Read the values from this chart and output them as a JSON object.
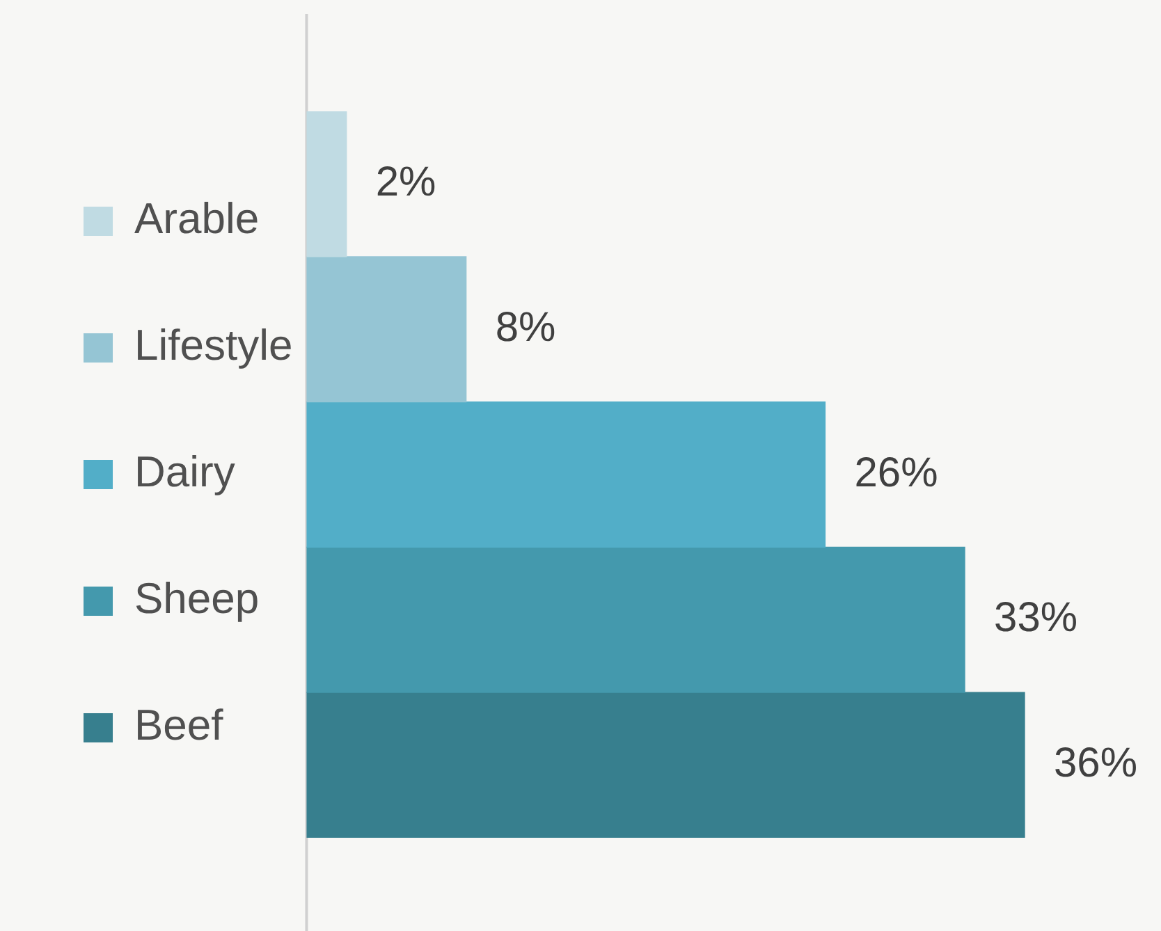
{
  "chart_data": {
    "type": "bar",
    "orientation": "horizontal",
    "categories": [
      null,
      null,
      null,
      null,
      null
    ],
    "series": [
      {
        "name": "Arable",
        "color": "#c0dbe3",
        "values": [
          2,
          null,
          null,
          null,
          null
        ],
        "value_labels": [
          "2%",
          null,
          null,
          null,
          null
        ]
      },
      {
        "name": "Lifestyle",
        "color": "#95c5d4",
        "values": [
          null,
          8,
          null,
          null,
          null
        ],
        "value_labels": [
          null,
          "8%",
          null,
          null,
          null
        ]
      },
      {
        "name": "Dairy",
        "color": "#52aec8",
        "values": [
          null,
          null,
          26,
          null,
          null
        ],
        "value_labels": [
          null,
          null,
          "26%",
          null,
          null
        ]
      },
      {
        "name": "Sheep",
        "color": "#4499ad",
        "values": [
          null,
          null,
          null,
          33,
          null
        ],
        "value_labels": [
          null,
          null,
          null,
          "33%",
          null
        ]
      },
      {
        "name": "Beef",
        "color": "#377f8e",
        "values": [
          null,
          null,
          null,
          null,
          36
        ],
        "value_labels": [
          null,
          null,
          null,
          null,
          "36%"
        ]
      }
    ],
    "stacked": true,
    "legend": "left"
  }
}
